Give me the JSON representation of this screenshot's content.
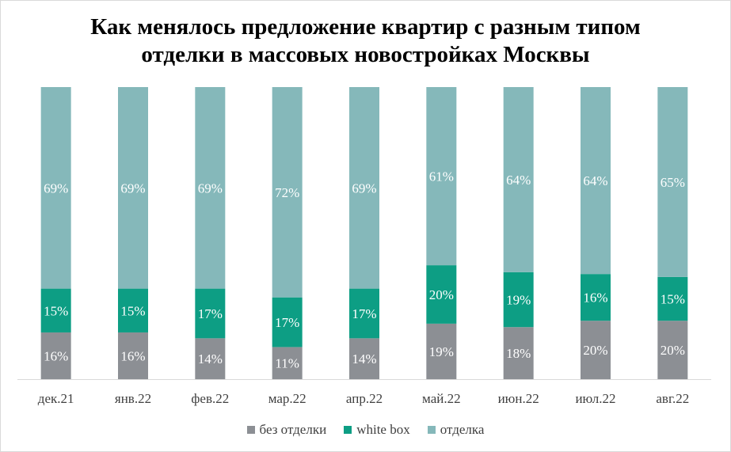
{
  "chart_data": {
    "type": "bar",
    "stacked": true,
    "title": [
      "Как менялось предложение квартир с разным типом",
      "отделки в массовых новостройках Москвы"
    ],
    "categories": [
      "дек.21",
      "янв.22",
      "фев.22",
      "мар.22",
      "апр.22",
      "май.22",
      "июн.22",
      "июл.22",
      "авг.22"
    ],
    "series": [
      {
        "name": "без отделки",
        "color": "#8c8f94",
        "values": [
          16,
          16,
          14,
          11,
          14,
          19,
          18,
          20,
          20
        ],
        "labels": [
          "16%",
          "16%",
          "14%",
          "11%",
          "14%",
          "19%",
          "18%",
          "20%",
          "20%"
        ]
      },
      {
        "name": "white box",
        "color": "#0d9e84",
        "values": [
          15,
          15,
          17,
          17,
          17,
          20,
          19,
          16,
          15
        ],
        "labels": [
          "15%",
          "15%",
          "17%",
          "17%",
          "17%",
          "20%",
          "19%",
          "16%",
          "15%"
        ]
      },
      {
        "name": "отделка",
        "color": "#85b8ba",
        "values": [
          69,
          69,
          69,
          72,
          69,
          61,
          64,
          64,
          65
        ],
        "labels": [
          "69%",
          "69%",
          "69%",
          "72%",
          "69%",
          "61%",
          "64%",
          "64%",
          "65%"
        ]
      }
    ],
    "legend_position": "bottom",
    "grid": false
  }
}
